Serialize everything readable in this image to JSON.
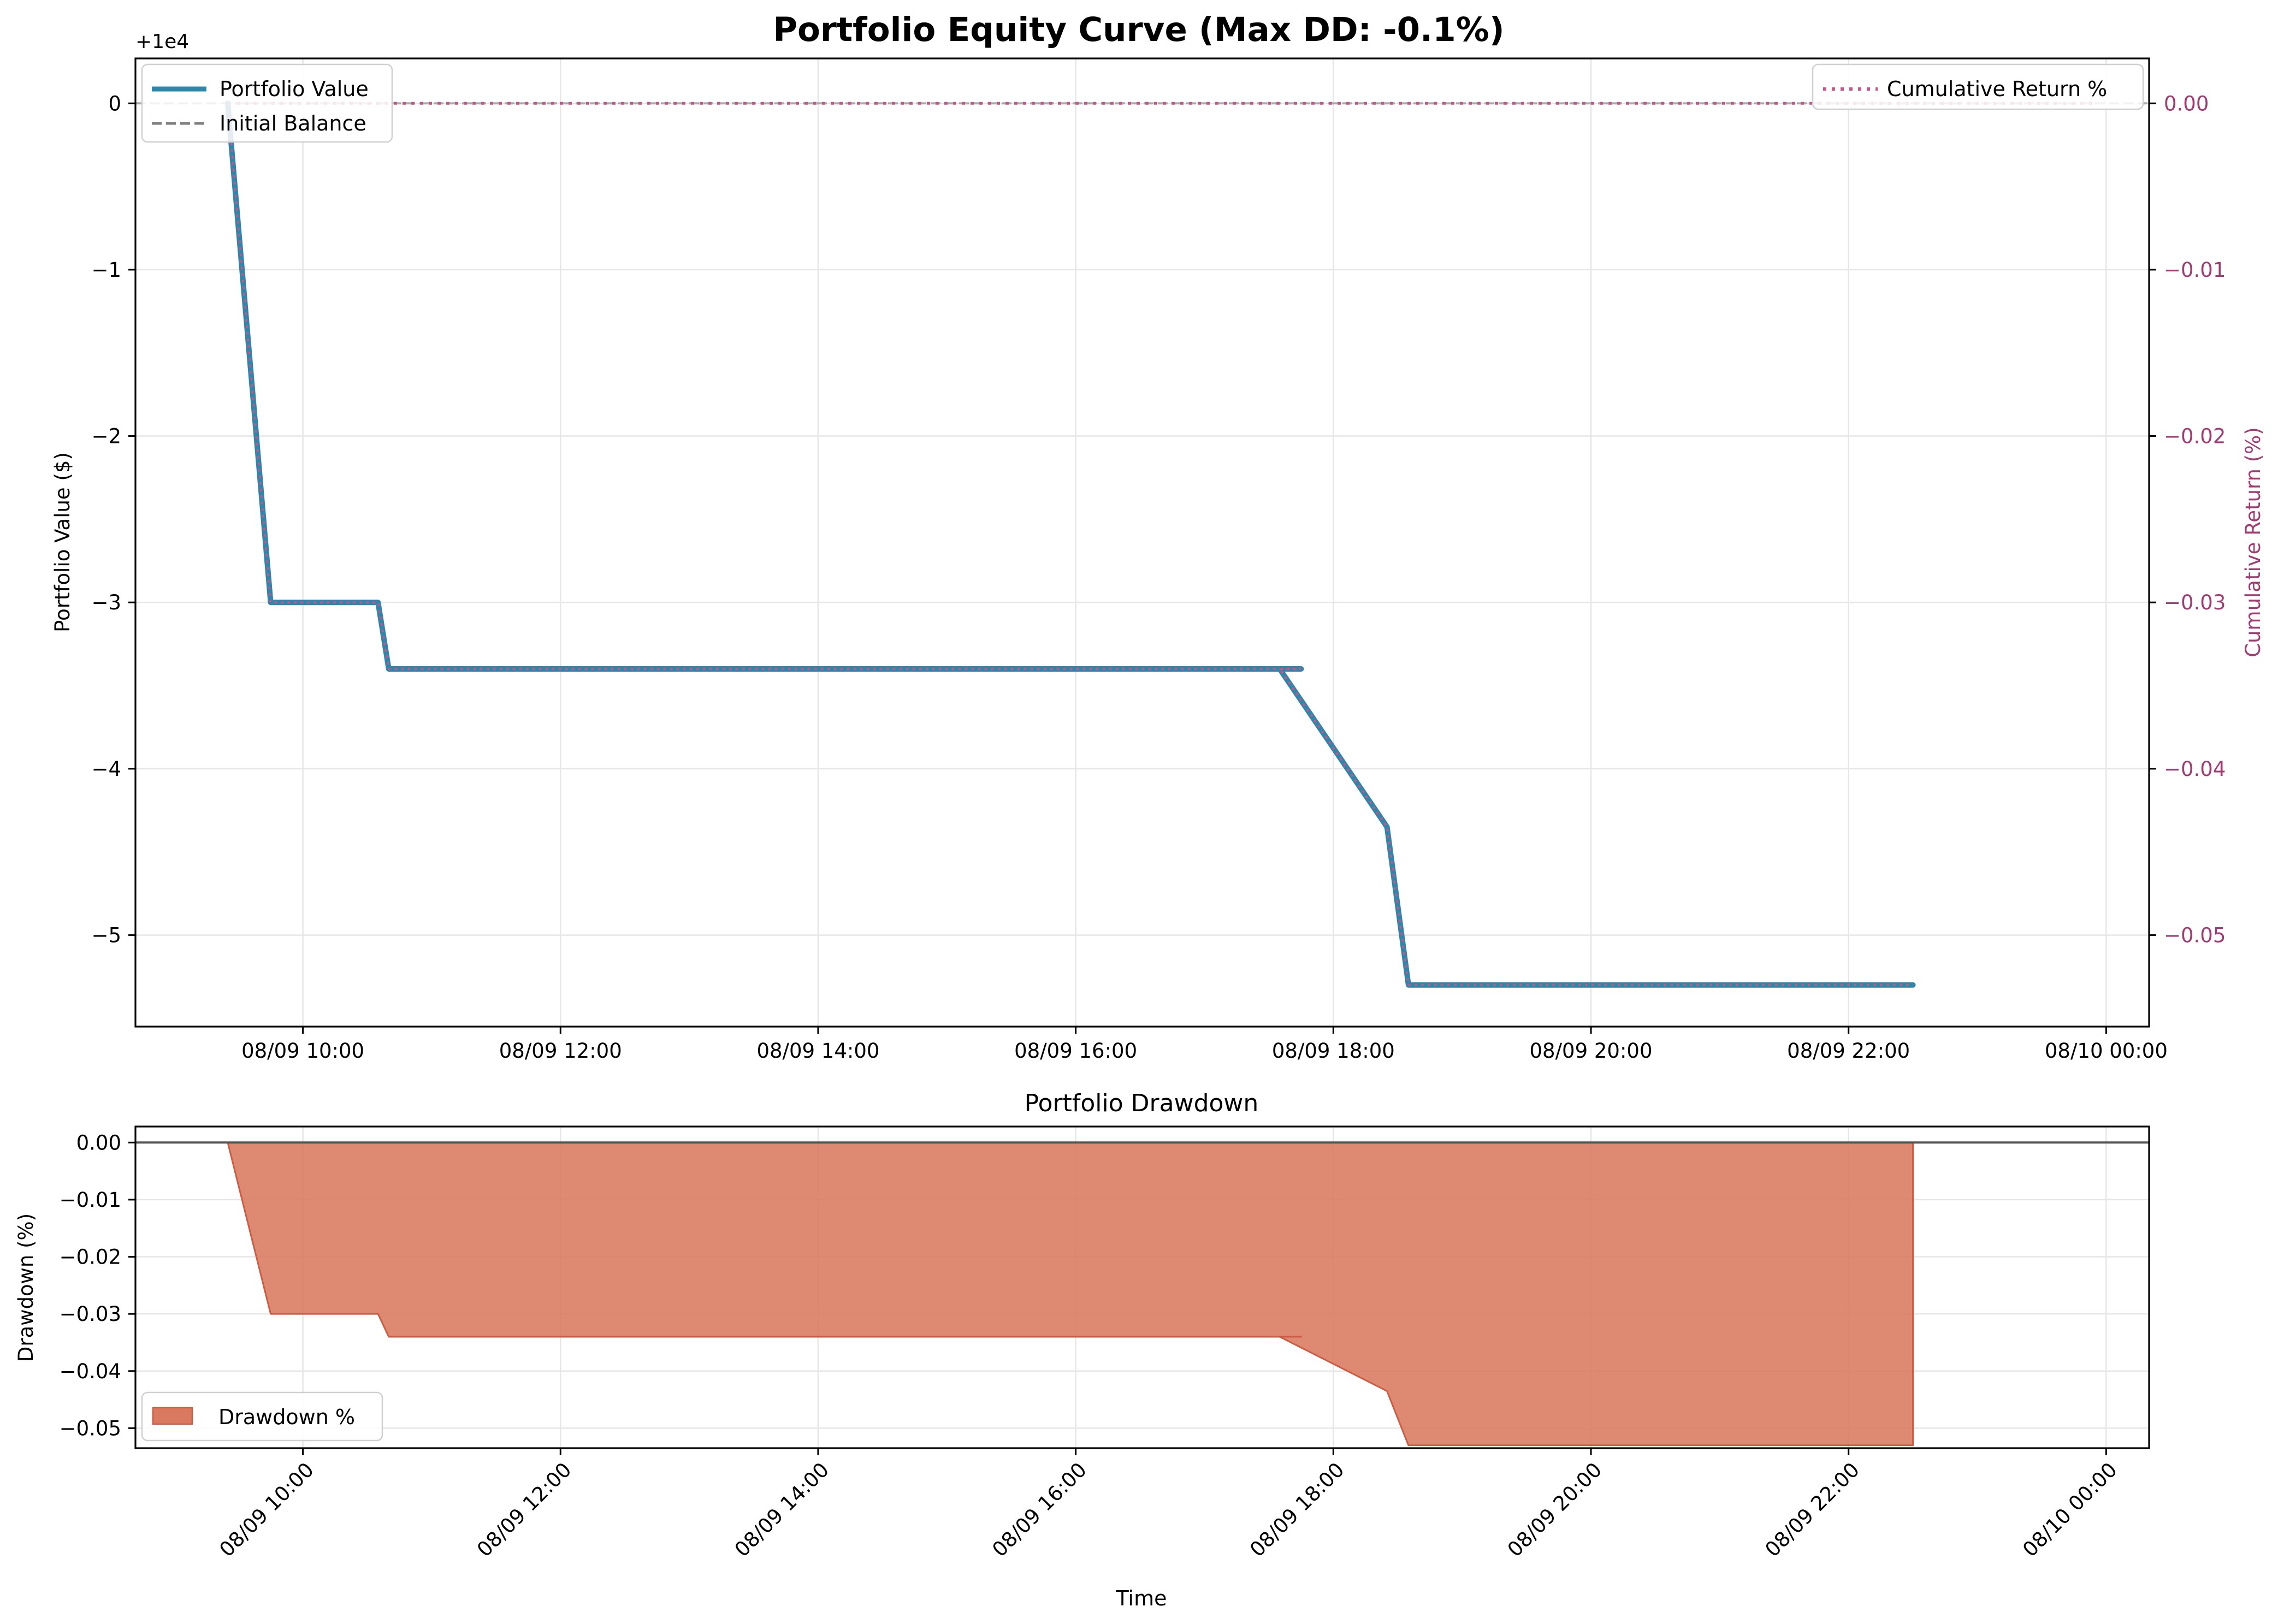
{
  "colors": {
    "portfolio": "#2e86ab",
    "cumret": "#c2578a",
    "cumret_axis": "#a23b72",
    "initial": "#808080",
    "drawdown_fill": "#d97a60",
    "drawdown_edge": "#cd5c44",
    "zero_line": "#555555",
    "grid": "#e6e6e6"
  },
  "chart_data": [
    {
      "type": "line",
      "title": "Portfolio Equity Curve (Max DD: -0.1%)",
      "ylabel": "Portfolio Value ($)",
      "y_offset_label": "+1e4",
      "y2label": "Cumulative Return (%)",
      "ylim": [
        -5.55,
        0.27
      ],
      "y2lim": [
        -0.0555,
        0.0027
      ],
      "xlim": [
        "2024-08-09 08:42",
        "2024-08-10 00:20"
      ],
      "yticks": [
        0,
        -1,
        -2,
        -3,
        -4,
        -5
      ],
      "ytick_labels": [
        "0",
        "−1",
        "−2",
        "−3",
        "−4",
        "−5"
      ],
      "y2ticks": [
        0,
        -0.01,
        -0.02,
        -0.03,
        -0.04,
        -0.05
      ],
      "y2tick_labels": [
        "0.00",
        "−0.01",
        "−0.02",
        "−0.03",
        "−0.04",
        "−0.05"
      ],
      "xticks": [
        "2024-08-09 10:00",
        "2024-08-09 12:00",
        "2024-08-09 14:00",
        "2024-08-09 16:00",
        "2024-08-09 18:00",
        "2024-08-09 20:00",
        "2024-08-09 22:00",
        "2024-08-10 00:00"
      ],
      "xtick_labels": [
        "08/09 10:00",
        "08/09 12:00",
        "08/09 14:00",
        "08/09 16:00",
        "08/09 18:00",
        "08/09 20:00",
        "08/09 22:00",
        "08/10 00:00"
      ],
      "grid": true,
      "legend_left": [
        "Portfolio Value",
        "Initial Balance"
      ],
      "legend_right": [
        "Cumulative Return %"
      ],
      "series": [
        {
          "name": "Portfolio Value",
          "x": [
            "2024-08-09 09:25",
            "2024-08-09 09:45",
            "2024-08-09 10:35",
            "2024-08-09 10:40",
            "2024-08-09 17:35",
            "2024-08-09 17:45",
            "2024-08-09 17:35",
            "2024-08-09 18:25",
            "2024-08-09 18:35",
            "2024-08-09 22:30"
          ],
          "y": [
            0,
            -3.0,
            -3.0,
            -3.4,
            -3.4,
            -3.4,
            -3.4,
            -4.35,
            -5.3,
            -5.3
          ]
        },
        {
          "name": "Cumulative Return %",
          "x": [
            "2024-08-09 09:25",
            "2024-08-09 09:45",
            "2024-08-09 10:35",
            "2024-08-09 10:40",
            "2024-08-09 17:35",
            "2024-08-09 17:45",
            "2024-08-09 17:35",
            "2024-08-09 18:25",
            "2024-08-09 18:35",
            "2024-08-09 22:30"
          ],
          "y": [
            0,
            -0.03,
            -0.03,
            -0.034,
            -0.034,
            -0.034,
            -0.034,
            -0.0435,
            -0.053,
            -0.053
          ]
        },
        {
          "name": "Initial Balance",
          "x": [
            "2024-08-09 08:42",
            "2024-08-10 00:20"
          ],
          "y": [
            0,
            0
          ]
        },
        {
          "name": "Cumulative Return % baseline",
          "x": [
            "2024-08-09 09:25",
            "2024-08-09 23:55"
          ],
          "y": [
            0,
            0
          ]
        }
      ]
    },
    {
      "type": "area",
      "title": "Portfolio Drawdown",
      "xlabel": "Time",
      "ylabel": "Drawdown (%)",
      "ylim": [
        -0.0535,
        0.0028
      ],
      "xlim": [
        "2024-08-09 08:42",
        "2024-08-10 00:20"
      ],
      "yticks": [
        0,
        -0.01,
        -0.02,
        -0.03,
        -0.04,
        -0.05
      ],
      "ytick_labels": [
        "0.00",
        "−0.01",
        "−0.02",
        "−0.03",
        "−0.04",
        "−0.05"
      ],
      "xticks": [
        "2024-08-09 10:00",
        "2024-08-09 12:00",
        "2024-08-09 14:00",
        "2024-08-09 16:00",
        "2024-08-09 18:00",
        "2024-08-09 20:00",
        "2024-08-09 22:00",
        "2024-08-10 00:00"
      ],
      "xtick_labels": [
        "08/09 10:00",
        "08/09 12:00",
        "08/09 14:00",
        "08/09 16:00",
        "08/09 18:00",
        "08/09 20:00",
        "08/09 22:00",
        "08/10 00:00"
      ],
      "grid": true,
      "legend": [
        "Drawdown %"
      ],
      "series": [
        {
          "name": "Drawdown %",
          "x": [
            "2024-08-09 09:25",
            "2024-08-09 09:45",
            "2024-08-09 10:35",
            "2024-08-09 10:40",
            "2024-08-09 17:35",
            "2024-08-09 17:45",
            "2024-08-09 17:35",
            "2024-08-09 18:25",
            "2024-08-09 18:35",
            "2024-08-09 22:30"
          ],
          "y": [
            0,
            -0.03,
            -0.03,
            -0.034,
            -0.034,
            -0.034,
            -0.034,
            -0.0435,
            -0.053,
            -0.053
          ]
        }
      ]
    }
  ]
}
